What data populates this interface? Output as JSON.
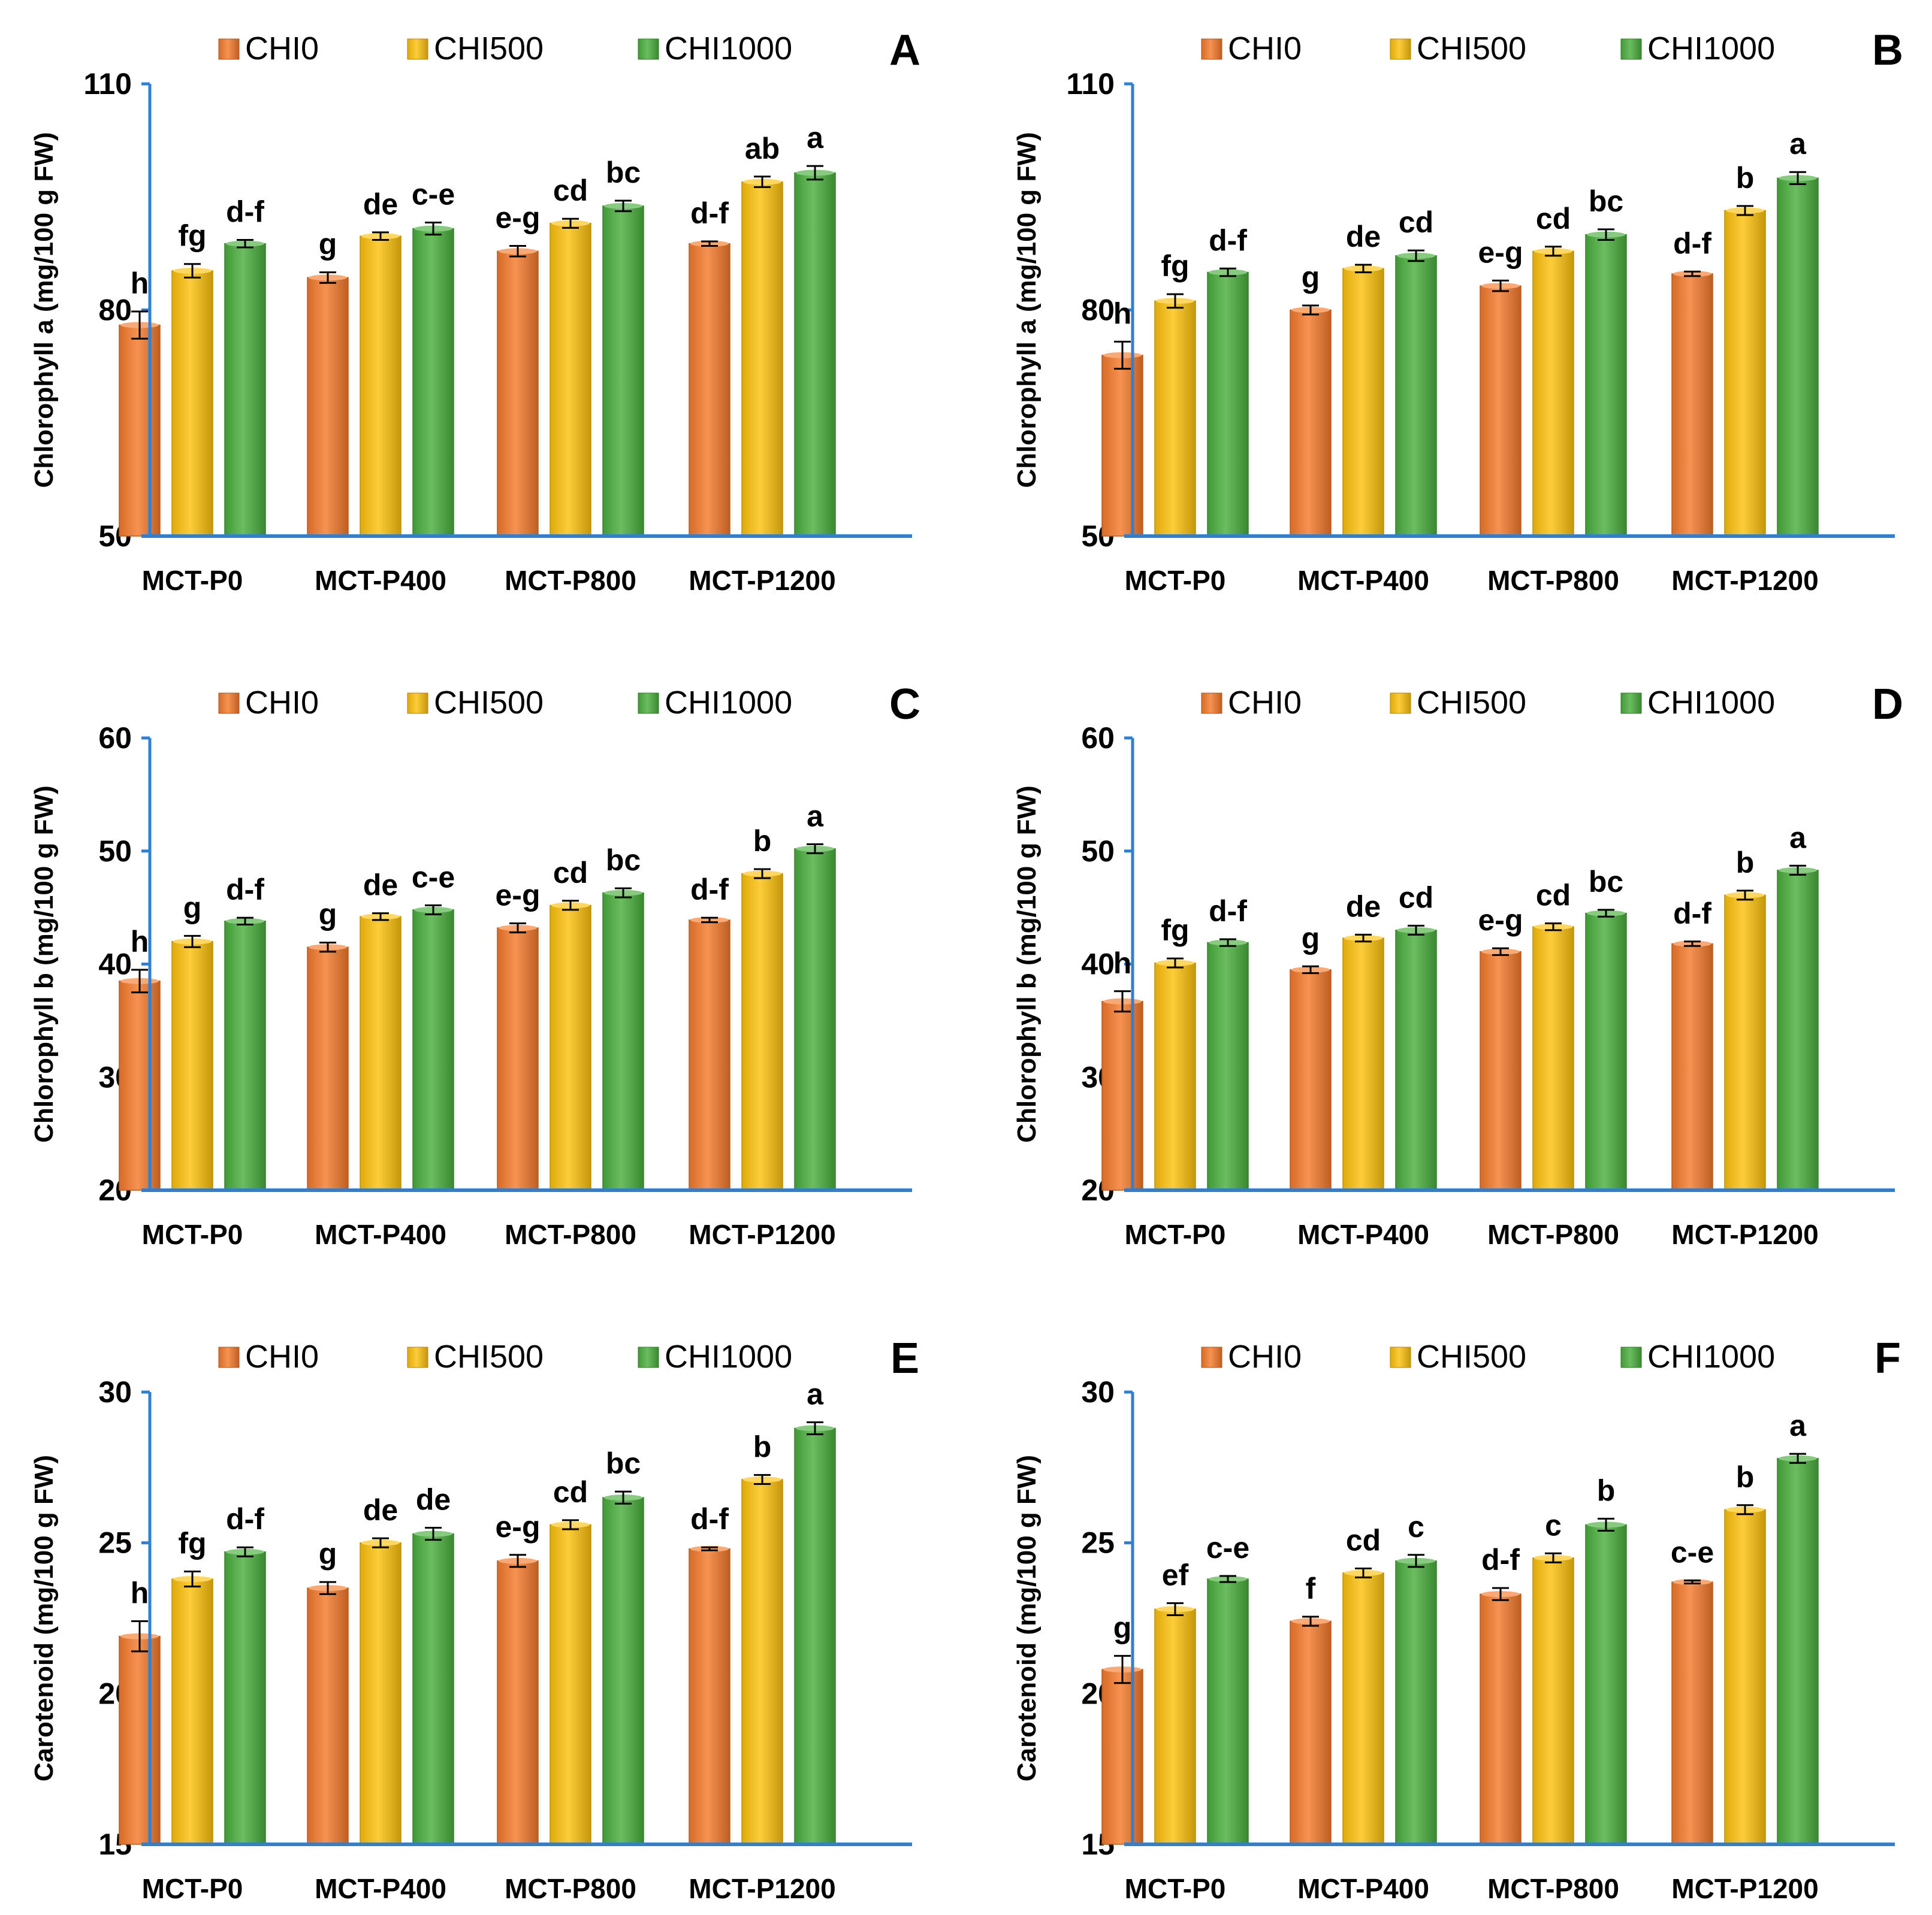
{
  "colors": {
    "CHI0": "#f47a2c",
    "CHI500": "#fdc10d",
    "CHI1000": "#4aae3d",
    "axis": "#2f7fd3",
    "error_bar": "#000000"
  },
  "legend": [
    "CHI0",
    "CHI500",
    "CHI1000"
  ],
  "chart_data": [
    {
      "panel": "A",
      "type": "bar",
      "ylabel": "Chlorophyll a (mg/100 g FW)",
      "ylim": [
        50,
        110
      ],
      "yticks": [
        50,
        80,
        110
      ],
      "categories": [
        "MCT-P0",
        "MCT-P400",
        "MCT-P800",
        "MCT-P1200"
      ],
      "series": [
        {
          "name": "CHI0",
          "values": [
            78.0,
            84.3,
            87.8,
            88.8
          ],
          "errors": [
            1.8,
            0.7,
            0.7,
            0.3
          ],
          "letters": [
            "h",
            "g",
            "e-g",
            "d-f"
          ]
        },
        {
          "name": "CHI500",
          "values": [
            85.2,
            89.8,
            91.5,
            97.0
          ],
          "errors": [
            0.9,
            0.5,
            0.6,
            0.7
          ],
          "letters": [
            "fg",
            "de",
            "cd",
            "ab"
          ]
        },
        {
          "name": "CHI1000",
          "values": [
            88.8,
            90.8,
            93.8,
            98.2
          ],
          "errors": [
            0.5,
            0.8,
            0.7,
            0.9
          ],
          "letters": [
            "d-f",
            "c-e",
            "bc",
            "a"
          ]
        }
      ]
    },
    {
      "panel": "B",
      "type": "bar",
      "ylabel": "Chlorophyll a (mg/100 g FW)",
      "ylim": [
        50,
        110
      ],
      "yticks": [
        50,
        80,
        110
      ],
      "categories": [
        "MCT-P0",
        "MCT-P400",
        "MCT-P800",
        "MCT-P1200"
      ],
      "series": [
        {
          "name": "CHI0",
          "values": [
            74.0,
            80.0,
            83.2,
            84.8
          ],
          "errors": [
            1.8,
            0.6,
            0.7,
            0.3
          ],
          "letters": [
            "h",
            "g",
            "e-g",
            "d-f"
          ]
        },
        {
          "name": "CHI500",
          "values": [
            81.2,
            85.5,
            87.8,
            93.2
          ],
          "errors": [
            0.9,
            0.5,
            0.6,
            0.6
          ],
          "letters": [
            "fg",
            "de",
            "cd",
            "b"
          ]
        },
        {
          "name": "CHI1000",
          "values": [
            85.0,
            87.2,
            90.0,
            97.5
          ],
          "errors": [
            0.5,
            0.7,
            0.7,
            0.8
          ],
          "letters": [
            "d-f",
            "cd",
            "bc",
            "a"
          ]
        }
      ]
    },
    {
      "panel": "C",
      "type": "bar",
      "ylabel": "Chlorophyll b (mg/100 g FW)",
      "ylim": [
        20,
        60
      ],
      "yticks": [
        20,
        30,
        40,
        50,
        60
      ],
      "categories": [
        "MCT-P0",
        "MCT-P400",
        "MCT-P800",
        "MCT-P1200"
      ],
      "series": [
        {
          "name": "CHI0",
          "values": [
            38.5,
            41.5,
            43.2,
            43.9
          ],
          "errors": [
            1.0,
            0.4,
            0.4,
            0.2
          ],
          "letters": [
            "h",
            "g",
            "e-g",
            "d-f"
          ]
        },
        {
          "name": "CHI500",
          "values": [
            42.0,
            44.2,
            45.2,
            48.0
          ],
          "errors": [
            0.5,
            0.3,
            0.4,
            0.4
          ],
          "letters": [
            "g",
            "de",
            "cd",
            "b"
          ]
        },
        {
          "name": "CHI1000",
          "values": [
            43.8,
            44.8,
            46.3,
            50.2
          ],
          "errors": [
            0.3,
            0.4,
            0.4,
            0.4
          ],
          "letters": [
            "d-f",
            "c-e",
            "bc",
            "a"
          ]
        }
      ]
    },
    {
      "panel": "D",
      "type": "bar",
      "ylabel": "Chlorophyll b (mg/100 g FW)",
      "ylim": [
        20,
        60
      ],
      "yticks": [
        20,
        30,
        40,
        50,
        60
      ],
      "categories": [
        "MCT-P0",
        "MCT-P400",
        "MCT-P800",
        "MCT-P1200"
      ],
      "series": [
        {
          "name": "CHI0",
          "values": [
            36.7,
            39.5,
            41.1,
            41.8
          ],
          "errors": [
            0.9,
            0.3,
            0.3,
            0.2
          ],
          "letters": [
            "h",
            "g",
            "e-g",
            "d-f"
          ]
        },
        {
          "name": "CHI500",
          "values": [
            40.1,
            42.3,
            43.3,
            46.1
          ],
          "errors": [
            0.4,
            0.3,
            0.3,
            0.4
          ],
          "letters": [
            "fg",
            "de",
            "cd",
            "b"
          ]
        },
        {
          "name": "CHI1000",
          "values": [
            41.9,
            43.0,
            44.5,
            48.3
          ],
          "errors": [
            0.3,
            0.4,
            0.3,
            0.4
          ],
          "letters": [
            "d-f",
            "cd",
            "bc",
            "a"
          ]
        }
      ]
    },
    {
      "panel": "E",
      "type": "bar",
      "ylabel": "Carotenoid (mg/100 g FW)",
      "ylim": [
        15,
        30
      ],
      "yticks": [
        15,
        20,
        25,
        30
      ],
      "categories": [
        "MCT-P0",
        "MCT-P400",
        "MCT-P800",
        "MCT-P1200"
      ],
      "series": [
        {
          "name": "CHI0",
          "values": [
            21.9,
            23.5,
            24.4,
            24.8
          ],
          "errors": [
            0.5,
            0.2,
            0.2,
            0.05
          ],
          "letters": [
            "h",
            "g",
            "e-g",
            "d-f"
          ]
        },
        {
          "name": "CHI500",
          "values": [
            23.8,
            25.0,
            25.6,
            27.1
          ],
          "errors": [
            0.25,
            0.15,
            0.15,
            0.15
          ],
          "letters": [
            "fg",
            "de",
            "cd",
            "b"
          ]
        },
        {
          "name": "CHI1000",
          "values": [
            24.7,
            25.3,
            26.5,
            28.8
          ],
          "errors": [
            0.15,
            0.2,
            0.2,
            0.2
          ],
          "letters": [
            "d-f",
            "de",
            "bc",
            "a"
          ]
        }
      ]
    },
    {
      "panel": "F",
      "type": "bar",
      "ylabel": "Carotenoid (mg/100 g FW)",
      "ylim": [
        15,
        30
      ],
      "yticks": [
        15,
        20,
        25,
        30
      ],
      "categories": [
        "MCT-P0",
        "MCT-P400",
        "MCT-P800",
        "MCT-P1200"
      ],
      "series": [
        {
          "name": "CHI0",
          "values": [
            20.8,
            22.4,
            23.3,
            23.7
          ],
          "errors": [
            0.45,
            0.15,
            0.2,
            0.05
          ],
          "letters": [
            "g",
            "f",
            "d-f",
            "c-e"
          ]
        },
        {
          "name": "CHI500",
          "values": [
            22.8,
            24.0,
            24.5,
            26.1
          ],
          "errors": [
            0.2,
            0.15,
            0.15,
            0.15
          ],
          "letters": [
            "ef",
            "cd",
            "c",
            "b"
          ]
        },
        {
          "name": "CHI1000",
          "values": [
            23.8,
            24.4,
            25.6,
            27.8
          ],
          "errors": [
            0.1,
            0.2,
            0.2,
            0.15
          ],
          "letters": [
            "c-e",
            "c",
            "b",
            "a"
          ]
        }
      ]
    }
  ]
}
